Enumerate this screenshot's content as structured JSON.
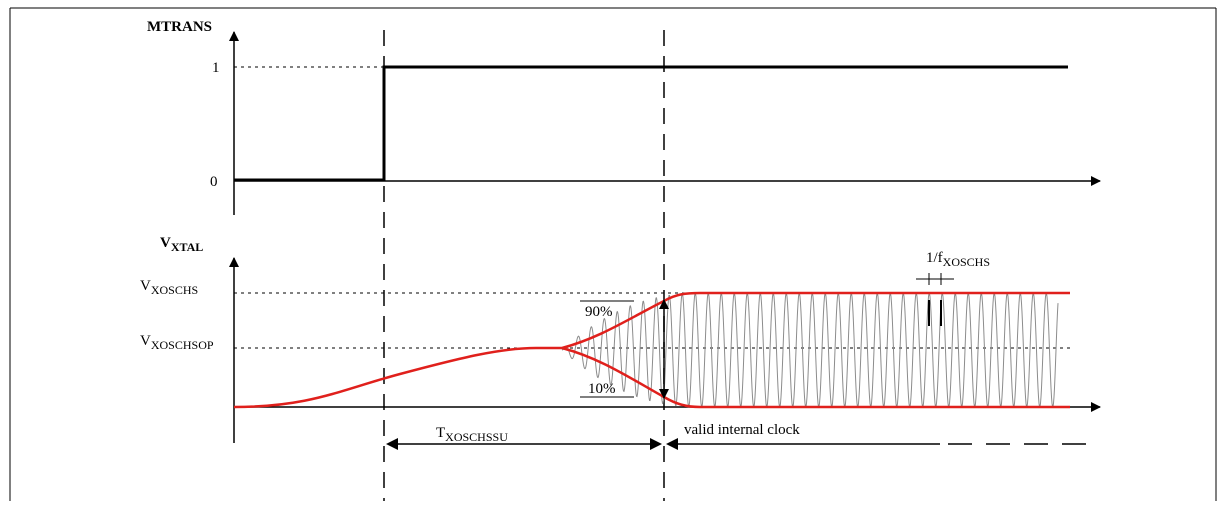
{
  "signals": {
    "top": {
      "name": "MTRANS",
      "level_high": "1",
      "level_low": "0"
    },
    "bottom": {
      "name_main": "V",
      "name_sub": "XTAL",
      "level_high_main": "V",
      "level_high_sub": "XOSCHS",
      "level_op_main": "V",
      "level_op_sub": "XOSCHSOP"
    }
  },
  "annotations": {
    "pct_high": "90%",
    "pct_low": "10%",
    "period_main": "1/f",
    "period_sub": "XOSCHS",
    "startup_main": "T",
    "startup_sub": "XOSCHSSU",
    "valid_clock": "valid internal clock"
  },
  "colors": {
    "envelope": "#e0201c",
    "oscillation": "#8c8c8c",
    "lines": "#000000",
    "page_border": "#000000"
  },
  "arrow_icon": "filled-triangle-arrowhead"
}
